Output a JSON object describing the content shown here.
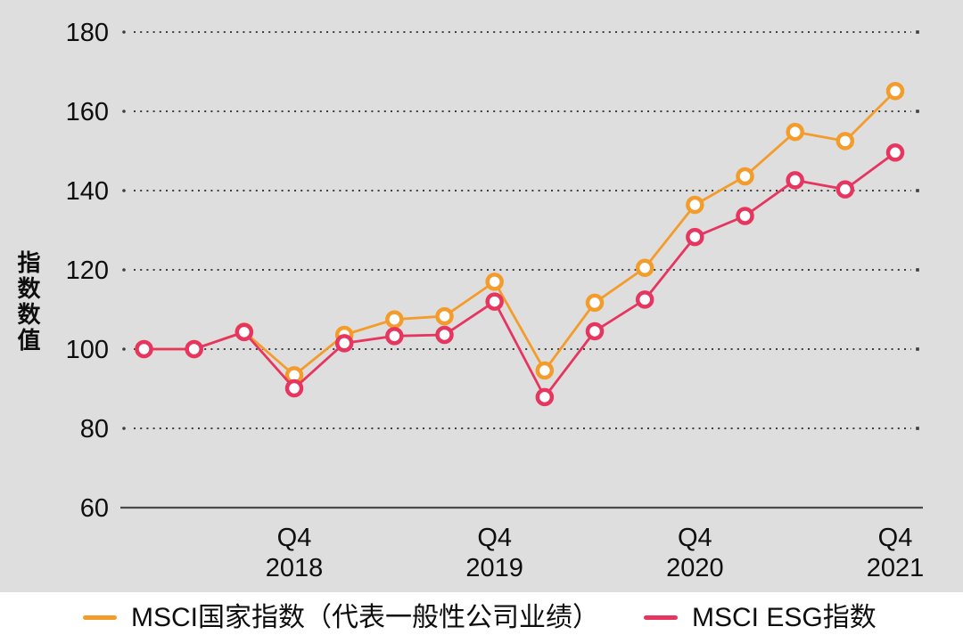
{
  "colors": {
    "panel_background": "#dedede",
    "page_background": "#ffffff",
    "axis_line": "#4a4a4a",
    "grid_dots": "#3e3e3e",
    "text": "#0e0e0e",
    "marker_fill": "#ffffff",
    "series_country": "#f39c2b",
    "series_esg": "#e6355f"
  },
  "chart_data": {
    "type": "line",
    "title": "",
    "xlabel": "",
    "ylabel": "指数数值",
    "ylim": [
      60,
      180
    ],
    "yticks": [
      60,
      80,
      100,
      120,
      140,
      160,
      180
    ],
    "grid": "horizontal dotted lines, grey chart panel, no vertical gridlines",
    "legend_position": "bottom",
    "categories": [
      "2018 Q1",
      "2018 Q2",
      "2018 Q3",
      "2018 Q4",
      "2019 Q1",
      "2019 Q2",
      "2019 Q3",
      "2019 Q4",
      "2020 Q1",
      "2020 Q2",
      "2020 Q3",
      "2020 Q4",
      "2021 Q1",
      "2021 Q2",
      "2021 Q3",
      "2021 Q4"
    ],
    "x_tick_labels": [
      {
        "index": 3,
        "line1": "Q4",
        "line2": "2018"
      },
      {
        "index": 7,
        "line1": "Q4",
        "line2": "2019"
      },
      {
        "index": 11,
        "line1": "Q4",
        "line2": "2020"
      },
      {
        "index": 15,
        "line1": "Q4",
        "line2": "2021"
      }
    ],
    "series": [
      {
        "name": "MSCI国家指数（代表一般性公司业绩）",
        "color": "#f39c2b",
        "values": [
          100,
          100,
          104.4,
          93.4,
          103.6,
          107.5,
          108.3,
          117,
          94.6,
          111.7,
          120.5,
          136.4,
          143.6,
          154.8,
          152.5,
          165.1
        ]
      },
      {
        "name": "MSCI ESG指数",
        "color": "#e6355f",
        "values": [
          100,
          100,
          104.3,
          90.1,
          101.5,
          103.3,
          103.6,
          112,
          87.9,
          104.5,
          112.5,
          128.3,
          133.6,
          142.6,
          140.3,
          149.6
        ]
      }
    ],
    "marker": {
      "shape": "circle",
      "fill": "#ffffff"
    }
  }
}
